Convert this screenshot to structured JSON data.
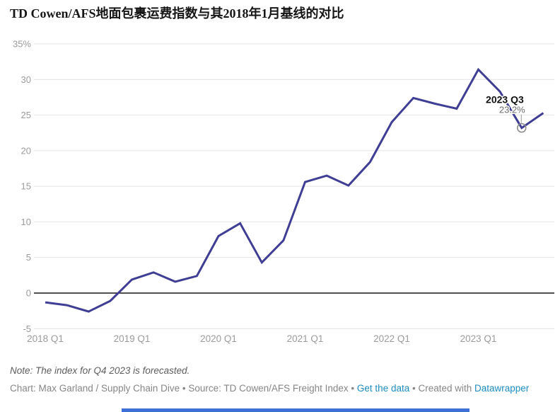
{
  "title": "TD Cowen/AFS地面包裹运费指数与其2018年1月基线的对比",
  "chart_data": {
    "type": "line",
    "title": "TD Cowen/AFS地面包裹运费指数与其2018年1月基线的对比",
    "categories": [
      "2018 Q1",
      "2018 Q2",
      "2018 Q3",
      "2018 Q4",
      "2019 Q1",
      "2019 Q2",
      "2019 Q3",
      "2019 Q4",
      "2020 Q1",
      "2020 Q2",
      "2020 Q3",
      "2020 Q4",
      "2021 Q1",
      "2021 Q2",
      "2021 Q3",
      "2021 Q4",
      "2022 Q1",
      "2022 Q2",
      "2022 Q3",
      "2022 Q4",
      "2023 Q1",
      "2023 Q2",
      "2023 Q3",
      "2023 Q4"
    ],
    "values": [
      -1.3,
      -1.7,
      -2.6,
      -1.1,
      1.9,
      2.9,
      1.6,
      2.4,
      8.0,
      9.8,
      4.3,
      7.4,
      15.6,
      16.5,
      15.1,
      18.4,
      24.0,
      27.4,
      26.6,
      25.9,
      31.4,
      28.3,
      23.2,
      25.3
    ],
    "unit": "%",
    "ylim": [
      -5,
      35
    ],
    "y_ticks": [
      35,
      30,
      25,
      20,
      15,
      10,
      5,
      0,
      -5
    ],
    "y_tick_labels": [
      "35%",
      "30",
      "25",
      "20",
      "15",
      "10",
      "5",
      "0",
      "-5"
    ],
    "x_tick_indices": [
      0,
      4,
      8,
      12,
      16,
      20
    ],
    "x_tick_labels": [
      "2018 Q1",
      "2019 Q1",
      "2020 Q1",
      "2021 Q1",
      "2022 Q1",
      "2023 Q1"
    ],
    "grid": true,
    "legend": "none",
    "line_color": "#3f3d94",
    "annotation": {
      "index": 22,
      "label": "2023 Q3",
      "value_label": "23.2%",
      "value": 23.2
    }
  },
  "footer": {
    "note": "Note: The index for Q4 2023 is forecasted.",
    "credit_prefix": "Chart: Max Garland / Supply Chain Dive • Source: TD Cowen/AFS Freight Index • ",
    "get_data_link": "Get the data",
    "credit_mid": " • Created with ",
    "datawrapper_link": "Datawrapper"
  },
  "colors": {
    "line": "#3f3d94",
    "grid": "#e4e4e4",
    "zero_axis": "#161616",
    "tick_text": "#9b9b9b",
    "link": "#1d8cbf",
    "bottom_bar": "#3e6fd6"
  }
}
